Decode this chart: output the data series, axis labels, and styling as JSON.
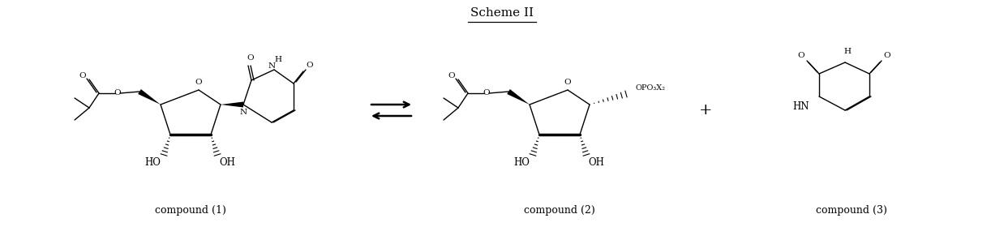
{
  "title": "Scheme II",
  "title_fontsize": 11,
  "background_color": "#ffffff",
  "compound1_label": "compound (1)",
  "compound2_label": "compound (2)",
  "compound3_label": "compound (3)",
  "fig_width": 12.38,
  "fig_height": 3.01,
  "dpi": 100
}
